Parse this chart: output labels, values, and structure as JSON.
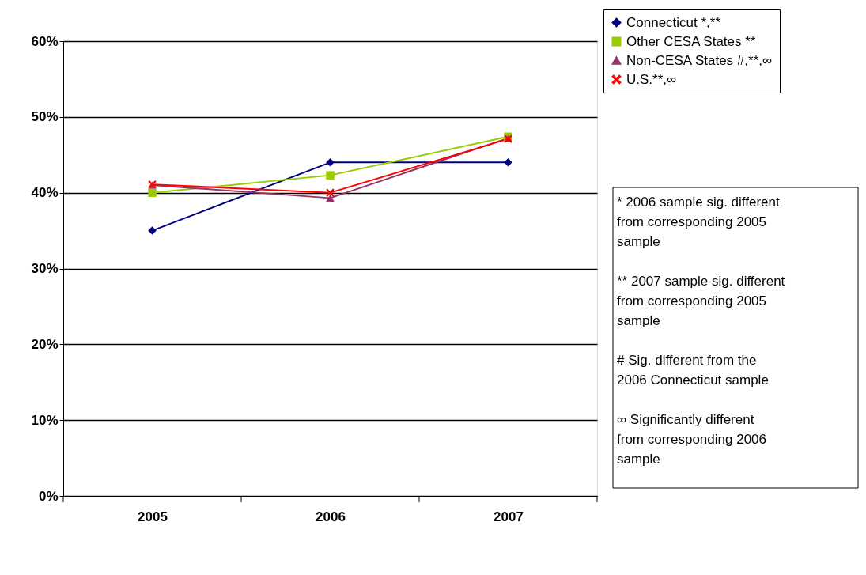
{
  "chart_data": {
    "type": "line",
    "categories": [
      "2005",
      "2006",
      "2007"
    ],
    "series": [
      {
        "name": "Connecticut *,**",
        "color": "#000080",
        "marker": "diamond",
        "values": [
          35,
          44,
          44
        ]
      },
      {
        "name": "Other CESA States **",
        "color": "#99cc00",
        "marker": "square",
        "values": [
          40,
          42.3,
          47.4
        ]
      },
      {
        "name": "Non-CESA States #,**,∞",
        "color": "#993366",
        "marker": "triangle",
        "values": [
          41,
          39.3,
          47.2
        ]
      },
      {
        "name": "U.S.**,∞",
        "color": "#ff0000",
        "marker": "cross",
        "values": [
          41.1,
          40,
          47.1
        ]
      }
    ],
    "ylim": [
      0,
      60
    ],
    "yticks": [
      {
        "value": 0,
        "label": "0%"
      },
      {
        "value": 10,
        "label": "10%"
      },
      {
        "value": 20,
        "label": "20%"
      },
      {
        "value": 30,
        "label": "30%"
      },
      {
        "value": 40,
        "label": "40%"
      },
      {
        "value": 50,
        "label": "50%"
      },
      {
        "value": 60,
        "label": "60%"
      }
    ],
    "grid": "y",
    "legend": "top right",
    "annotations": [
      "* 2006 sample sig. different from corresponding 2005 sample",
      "** 2007 sample sig. different from corresponding 2005 sample",
      "# Sig. different from the 2006 Connecticut sample",
      "∞ Significantly different from corresponding 2006 sample"
    ]
  }
}
